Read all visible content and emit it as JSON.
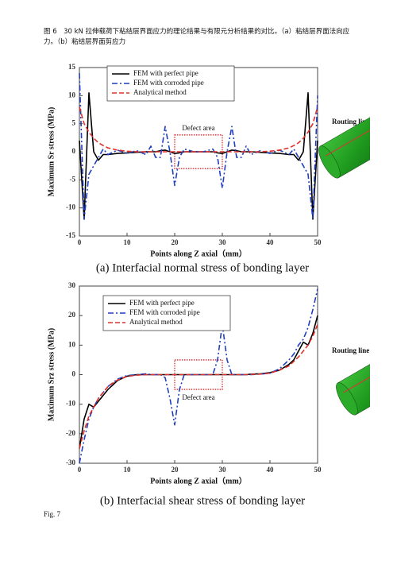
{
  "caption": "图 6　30 kN 拉伸载荷下粘结层界面应力的理论结果与有限元分析结果的对比。（a）粘结层界面法向应力。（b）粘结层界面剪应力",
  "fig_label": "Fig. 7",
  "routing_label": "Routing line",
  "chart_data": [
    {
      "type": "line",
      "caption": "(a) Interfacial normal stress of bonding layer",
      "xlabel": "Points along Z axial（mm）",
      "ylabel": "Maximum Sr stress (MPa)",
      "xlim": [
        0,
        50
      ],
      "xticks": [
        0,
        10,
        20,
        30,
        40,
        50
      ],
      "ylim": [
        -15,
        15
      ],
      "yticks": [
        -15,
        -10,
        -5,
        0,
        5,
        10,
        15
      ],
      "grid": false,
      "legend": "upper left",
      "annotation": {
        "text": "Defect area",
        "x": [
          20,
          30
        ],
        "y": [
          -3,
          3
        ],
        "color": "#d9262a"
      },
      "x": [
        0,
        1,
        2,
        3,
        4,
        5,
        6,
        8,
        10,
        12,
        14,
        15,
        16,
        17,
        18,
        19,
        20,
        21,
        22,
        24,
        25,
        26,
        28,
        29,
        30,
        31,
        32,
        33,
        34,
        35,
        36,
        38,
        40,
        42,
        44,
        45,
        46,
        47,
        48,
        49,
        50
      ],
      "series": [
        {
          "name": "FEM with perfect pipe",
          "color": "#000000",
          "style": "solid",
          "values": [
            2,
            -12,
            10.5,
            0,
            -1.5,
            -0.5,
            -0.5,
            -0.3,
            -0.2,
            -0.1,
            0,
            0,
            0,
            0.2,
            0.3,
            0,
            -0.3,
            -0.2,
            0,
            0,
            0,
            0,
            0,
            -0.2,
            -0.3,
            0,
            0.3,
            0.2,
            0,
            0,
            0,
            -0.1,
            -0.2,
            -0.3,
            -0.5,
            -0.5,
            -1.5,
            0,
            10.5,
            -12,
            2
          ]
        },
        {
          "name": "FEM with corroded pipe",
          "color": "#1f3fbf",
          "style": "dashdot",
          "values": [
            14,
            -12,
            -4,
            -2.5,
            -1,
            0.5,
            -0.5,
            0.3,
            -0.3,
            0.2,
            -0.5,
            1,
            -1,
            -1,
            4.5,
            0,
            -6,
            -1,
            0.5,
            0,
            0,
            0,
            0.5,
            -1,
            -6.5,
            0,
            4.5,
            -1,
            -1,
            1,
            -0.5,
            0.2,
            -0.3,
            0.3,
            -0.5,
            0.5,
            -1,
            -2.5,
            -4,
            -12,
            10
          ]
        },
        {
          "name": "Analytical method",
          "color": "#e0302a",
          "style": "dashed",
          "values": [
            8,
            5,
            3.5,
            2.4,
            1.6,
            1.1,
            0.7,
            0.3,
            0.1,
            0,
            0,
            0,
            0,
            0,
            0,
            0,
            0,
            0,
            0,
            0,
            0,
            0,
            0,
            0,
            0,
            0,
            0,
            0,
            0,
            0,
            0,
            0,
            0.1,
            0.3,
            0.7,
            1.1,
            1.6,
            2.4,
            3.5,
            5,
            8
          ]
        }
      ]
    },
    {
      "type": "line",
      "caption": "(b) Interfacial shear stress of bonding layer",
      "xlabel": "Points along Z axial（mm）",
      "ylabel": "Maximum Srz stress (MPa)",
      "xlim": [
        0,
        50
      ],
      "xticks": [
        0,
        10,
        20,
        30,
        40,
        50
      ],
      "ylim": [
        -30,
        30
      ],
      "yticks": [
        -30,
        -20,
        -10,
        0,
        10,
        20,
        30
      ],
      "grid": false,
      "legend": "upper left",
      "annotation": {
        "text": "Defect area",
        "x": [
          20,
          30
        ],
        "y": [
          -5,
          5
        ],
        "color": "#d9262a"
      },
      "x": [
        0,
        1,
        2,
        3,
        4,
        5,
        6,
        8,
        10,
        12,
        14,
        15,
        16,
        17,
        18,
        19,
        20,
        21,
        22,
        24,
        25,
        26,
        28,
        29,
        30,
        31,
        32,
        33,
        34,
        35,
        36,
        38,
        40,
        42,
        44,
        45,
        46,
        47,
        48,
        49,
        50
      ],
      "series": [
        {
          "name": "FEM with perfect pipe",
          "color": "#000000",
          "style": "solid",
          "values": [
            -25,
            -15,
            -10,
            -11,
            -9,
            -7,
            -5,
            -2,
            -0.5,
            0,
            0,
            0,
            0,
            0,
            0,
            0,
            0,
            0,
            0,
            0,
            0,
            0,
            0,
            0,
            0,
            0,
            0,
            0,
            0,
            0,
            0.2,
            0.3,
            0.7,
            1.5,
            3.5,
            5,
            8,
            11,
            10,
            14,
            20
          ]
        },
        {
          "name": "FEM with corroded pipe",
          "color": "#1f3fbf",
          "style": "dashdot",
          "values": [
            -30,
            -22,
            -15,
            -11,
            -8,
            -6,
            -4,
            -1.5,
            -0.3,
            0,
            0.3,
            0,
            0,
            0,
            -1,
            -8,
            -17,
            -5,
            0,
            0,
            0,
            0,
            0,
            5,
            17,
            5,
            0,
            0,
            0,
            0,
            0,
            0.2,
            0.5,
            2,
            5,
            7,
            10,
            12,
            16,
            22,
            29
          ]
        },
        {
          "name": "Analytical method",
          "color": "#e0302a",
          "style": "dashed",
          "values": [
            -25,
            -19,
            -14,
            -11,
            -8,
            -6,
            -4,
            -1.8,
            -0.6,
            -0.2,
            0,
            0,
            0,
            0,
            0,
            0,
            0,
            0,
            0,
            0,
            0,
            0,
            0,
            0,
            0,
            0,
            0,
            0,
            0,
            0,
            0.1,
            0.2,
            0.5,
            1.5,
            3,
            4.5,
            6,
            8,
            10,
            13,
            17
          ]
        }
      ]
    }
  ]
}
